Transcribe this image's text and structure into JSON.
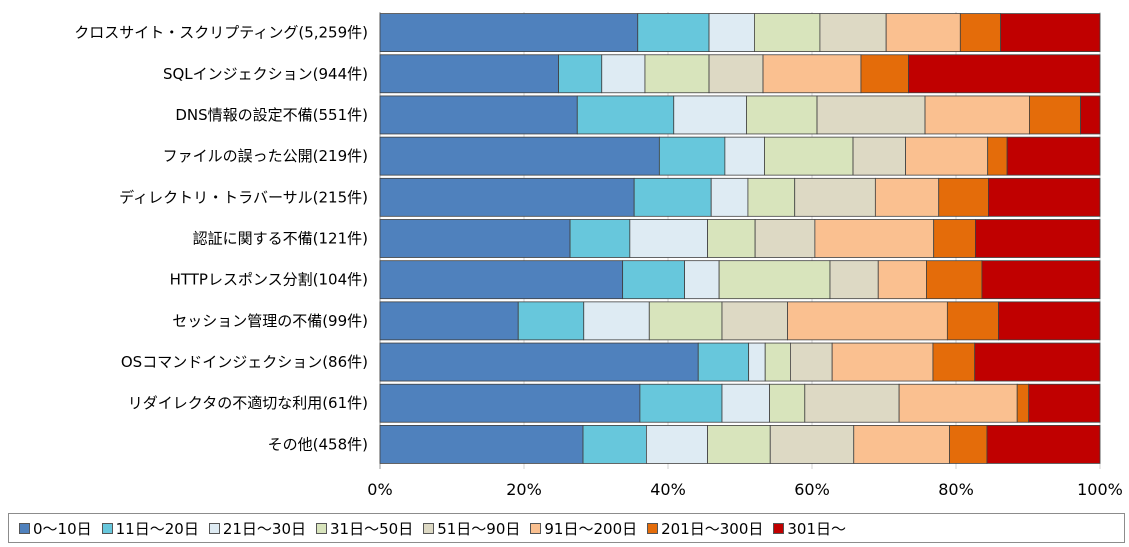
{
  "chart_data": {
    "type": "bar",
    "orientation": "horizontal",
    "stacked": true,
    "percent": true,
    "categories": [
      "クロスサイト・スクリプティング(5,259件)",
      "SQLインジェクション(944件)",
      "DNS情報の設定不備(551件)",
      "ファイルの誤った公開(219件)",
      "ディレクトリ・トラバーサル(215件)",
      "認証に関する不備(121件)",
      "HTTPレスポンス分割(104件)",
      "セッション管理の不備(99件)",
      "OSコマンドインジェクション(86件)",
      "リダイレクタの不適切な利用(61件)",
      "その他(458件)"
    ],
    "series": [
      {
        "name": "0～10日",
        "color": "#4f81bd",
        "values": [
          35.8,
          24.8,
          27.4,
          38.8,
          35.3,
          26.4,
          33.7,
          19.2,
          44.2,
          36.1,
          28.2
        ]
      },
      {
        "name": "11日～20日",
        "color": "#67c7dc",
        "values": [
          9.9,
          6.0,
          13.4,
          9.1,
          10.7,
          8.3,
          8.6,
          9.1,
          7.0,
          11.4,
          8.8
        ]
      },
      {
        "name": "21日～30日",
        "color": "#deebf3",
        "values": [
          6.3,
          6.0,
          10.1,
          5.5,
          5.1,
          10.8,
          4.8,
          9.1,
          2.3,
          6.6,
          8.5
        ]
      },
      {
        "name": "31日～50日",
        "color": "#d8e4bc",
        "values": [
          9.1,
          8.9,
          9.8,
          12.3,
          6.5,
          6.6,
          15.4,
          10.1,
          3.5,
          4.9,
          8.7
        ]
      },
      {
        "name": "51日～90日",
        "color": "#ddd9c4",
        "values": [
          9.2,
          7.5,
          15.0,
          7.3,
          11.2,
          8.3,
          6.7,
          9.1,
          5.8,
          13.1,
          11.6
        ]
      },
      {
        "name": "91日～200日",
        "color": "#fac090",
        "values": [
          10.3,
          13.6,
          14.5,
          11.4,
          8.8,
          16.5,
          6.7,
          22.2,
          14.0,
          16.4,
          13.3
        ]
      },
      {
        "name": "201日～300日",
        "color": "#e46c0a",
        "values": [
          5.6,
          6.6,
          7.1,
          2.7,
          6.9,
          5.8,
          7.7,
          7.1,
          5.8,
          1.6,
          5.2
        ]
      },
      {
        "name": "301日～",
        "color": "#c00000",
        "values": [
          13.8,
          26.6,
          2.7,
          12.9,
          15.5,
          17.3,
          16.4,
          14.1,
          17.4,
          9.9,
          15.7
        ]
      }
    ],
    "xlim": [
      0,
      100
    ],
    "xticks": [
      "0%",
      "20%",
      "40%",
      "60%",
      "80%",
      "100%"
    ],
    "grid": true,
    "legend_position": "bottom",
    "title": "",
    "xlabel": "",
    "ylabel": ""
  }
}
